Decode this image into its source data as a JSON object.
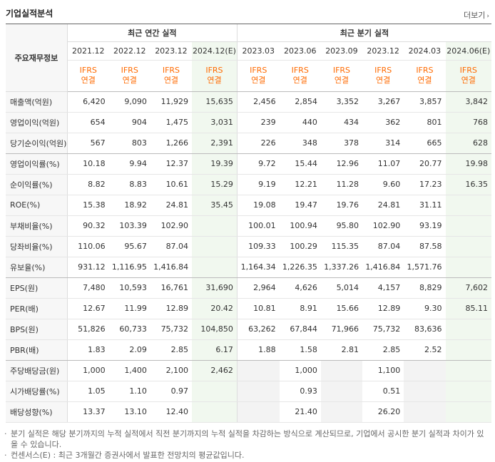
{
  "header": {
    "title": "기업실적분석",
    "more_label": "더보기"
  },
  "table": {
    "row_header_label": "주요재무정보",
    "group_annual": "최근 연간 실적",
    "group_quarter": "최근 분기 실적",
    "annual_periods": [
      "2021.12",
      "2022.12",
      "2023.12",
      "2024.12(E)"
    ],
    "quarter_periods": [
      "2023.03",
      "2023.06",
      "2023.09",
      "2023.12",
      "2024.03",
      "2024.06(E)"
    ],
    "type_line1": "IFRS",
    "type_line2": "연결",
    "rows": [
      {
        "label": "매출액(억원)",
        "annual": [
          "6,420",
          "9,090",
          "11,929",
          "15,635"
        ],
        "quarter": [
          "2,456",
          "2,854",
          "3,352",
          "3,267",
          "3,857",
          "3,842"
        ]
      },
      {
        "label": "영업이익(억원)",
        "annual": [
          "654",
          "904",
          "1,475",
          "3,031"
        ],
        "quarter": [
          "239",
          "440",
          "434",
          "362",
          "801",
          "768"
        ]
      },
      {
        "label": "당기순이익(억원)",
        "annual": [
          "567",
          "803",
          "1,266",
          "2,391"
        ],
        "quarter": [
          "226",
          "348",
          "378",
          "314",
          "665",
          "628"
        ]
      },
      {
        "label": "영업이익률(%)",
        "annual": [
          "10.18",
          "9.94",
          "12.37",
          "19.39"
        ],
        "quarter": [
          "9.72",
          "15.44",
          "12.96",
          "11.07",
          "20.77",
          "19.98"
        ]
      },
      {
        "label": "순이익률(%)",
        "annual": [
          "8.82",
          "8.83",
          "10.61",
          "15.29"
        ],
        "quarter": [
          "9.19",
          "12.21",
          "11.28",
          "9.60",
          "17.23",
          "16.35"
        ]
      },
      {
        "label": "ROE(%)",
        "annual": [
          "15.38",
          "18.92",
          "24.81",
          "35.45"
        ],
        "quarter": [
          "19.08",
          "19.47",
          "19.76",
          "24.81",
          "31.11",
          ""
        ]
      },
      {
        "label": "부채비율(%)",
        "annual": [
          "90.32",
          "103.39",
          "102.90",
          ""
        ],
        "quarter": [
          "100.01",
          "100.94",
          "95.80",
          "102.90",
          "93.19",
          ""
        ]
      },
      {
        "label": "당좌비율(%)",
        "annual": [
          "110.06",
          "95.67",
          "87.04",
          ""
        ],
        "quarter": [
          "109.33",
          "100.29",
          "115.35",
          "87.04",
          "87.58",
          ""
        ]
      },
      {
        "label": "유보율(%)",
        "annual": [
          "931.12",
          "1,116.95",
          "1,416.84",
          ""
        ],
        "quarter": [
          "1,164.34",
          "1,226.35",
          "1,337.26",
          "1,416.84",
          "1,571.76",
          ""
        ]
      },
      {
        "label": "EPS(원)",
        "annual": [
          "7,480",
          "10,593",
          "16,761",
          "31,690"
        ],
        "quarter": [
          "2,964",
          "4,626",
          "5,014",
          "4,157",
          "8,829",
          "7,602"
        ]
      },
      {
        "label": "PER(배)",
        "annual": [
          "12.67",
          "11.99",
          "12.89",
          "20.42"
        ],
        "quarter": [
          "10.81",
          "8.91",
          "15.66",
          "12.89",
          "9.30",
          "85.11"
        ]
      },
      {
        "label": "BPS(원)",
        "annual": [
          "51,826",
          "60,733",
          "75,732",
          "104,850"
        ],
        "quarter": [
          "63,262",
          "67,844",
          "71,966",
          "75,732",
          "83,636",
          ""
        ]
      },
      {
        "label": "PBR(배)",
        "annual": [
          "1.83",
          "2.09",
          "2.85",
          "6.17"
        ],
        "quarter": [
          "1.88",
          "1.58",
          "2.81",
          "2.85",
          "2.52",
          ""
        ]
      },
      {
        "label": "주당배당금(원)",
        "annual": [
          "1,000",
          "1,400",
          "2,100",
          "2,462"
        ],
        "quarter": [
          "",
          "1,000",
          "",
          "1,100",
          "",
          ""
        ]
      },
      {
        "label": "시가배당률(%)",
        "annual": [
          "1.05",
          "1.10",
          "0.97",
          ""
        ],
        "quarter": [
          "",
          "0.93",
          "",
          "0.51",
          "",
          ""
        ]
      },
      {
        "label": "배당성향(%)",
        "annual": [
          "13.37",
          "13.10",
          "12.40",
          ""
        ],
        "quarter": [
          "",
          "21.40",
          "",
          "26.20",
          "",
          ""
        ]
      }
    ]
  },
  "notes": [
    "분기 실적은 해당 분기까지의 누적 실적에서 직전 분기까지의 누적 실적을 차감하는 방식으로 계산되므로, 기업에서 공시한 분기 실적과 차이가 있을 수 있습니다.",
    "컨센서스(E) : 최근 3개월간 증권사에서 발표한 전망치의 평균값입니다."
  ],
  "colors": {
    "ifrs": "#ff6a00",
    "estimate_bg": "#f1f8ef",
    "blank_bg": "#f3f3f3"
  }
}
